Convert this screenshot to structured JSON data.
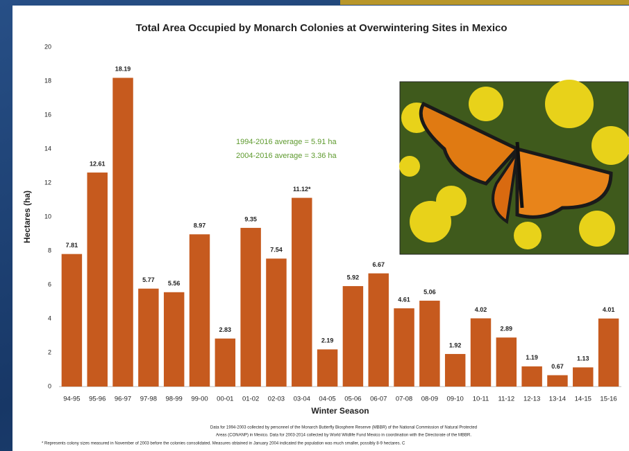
{
  "chart_data": {
    "type": "bar",
    "title": "Total Area Occupied by Monarch Colonies at Overwintering Sites in Mexico",
    "x_label": "Winter Season",
    "y_label": "Hectares (ha)",
    "categories": [
      "94-95",
      "95-96",
      "96-97",
      "97-98",
      "98-99",
      "99-00",
      "00-01",
      "01-02",
      "02-03",
      "03-04",
      "04-05",
      "05-06",
      "06-07",
      "07-08",
      "08-09",
      "09-10",
      "10-11",
      "11-12",
      "12-13",
      "13-14",
      "14-15",
      "15-16"
    ],
    "values": [
      7.81,
      12.61,
      18.19,
      5.77,
      5.56,
      8.97,
      2.83,
      9.35,
      7.54,
      11.12,
      2.19,
      5.92,
      6.67,
      4.61,
      5.06,
      1.92,
      4.02,
      2.89,
      1.19,
      0.67,
      1.13,
      4.01
    ],
    "value_labels": [
      "7.81",
      "12.61",
      "18.19",
      "5.77",
      "5.56",
      "8.97",
      "2.83",
      "9.35",
      "7.54",
      "11.12*",
      "2.19",
      "5.92",
      "6.67",
      "4.61",
      "5.06",
      "1.92",
      "4.02",
      "2.89",
      "1.19",
      "0.67",
      "1.13",
      "4.01"
    ],
    "color": "#c65a1e",
    "ylim": [
      0,
      20
    ],
    "yticks": [
      0,
      2,
      4,
      6,
      8,
      10,
      12,
      14,
      16,
      18,
      20
    ],
    "grid": false,
    "annotations": [
      "1994-2016 average = 5.91 ha",
      "2004-2016 average = 3.36 ha"
    ],
    "annotation_color": "#5e9a2e",
    "footnotes": [
      "Data for 1994-2003 collected by personnel of the Monarch Butterfly Biosphere Reserve (MBBR) of the National Commission of Natural Protected",
      "Areas (CONANP) in Mexico. Data for 2003-2014 collected by World Wildlife Fund Mexico in coordination with the Directorate of the MBBR.",
      "* Represents colony sizes measured in November of 2003 before the colonies consolidated. Measures obtained in January 2004 indicated the population was much smaller, possibly 8-9 hectares. C"
    ]
  }
}
